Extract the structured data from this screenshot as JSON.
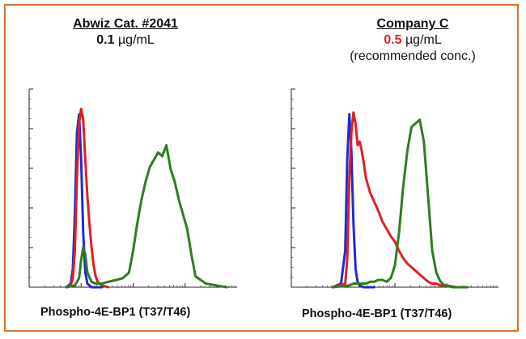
{
  "colors": {
    "border": "#d9742b",
    "red": "#e02020",
    "blue": "#1f2ad6",
    "green": "#2e7d1f",
    "accent_red": "#e02020"
  },
  "panels": [
    {
      "title": "Abwiz Cat. #2041",
      "conc_value": "0.1",
      "conc_unit": " µg/mL",
      "note": "",
      "xlabel": "Phospho-4E-BP1 (T37/T46)"
    },
    {
      "title": "Company C",
      "conc_value": "0.5",
      "conc_unit": " µg/mL",
      "note": "(recommended conc.)",
      "xlabel": "Phospho-4E-BP1 (T37/T46)"
    }
  ],
  "chart_data": [
    {
      "type": "line",
      "title": "Abwiz Cat. #2041",
      "xlabel": "Phospho-4E-BP1 (T37/T46)",
      "ylabel": "",
      "xlim": [
        0,
        100
      ],
      "ylim": [
        0,
        100
      ],
      "series": [
        {
          "color": "#1f2ad6",
          "x": [
            18,
            20,
            21,
            22,
            23,
            24,
            25,
            26,
            27,
            28,
            30,
            35
          ],
          "y": [
            0,
            2,
            10,
            40,
            85,
            95,
            70,
            30,
            8,
            2,
            0,
            0
          ]
        },
        {
          "color": "#e02020",
          "x": [
            18,
            20,
            21,
            22,
            23,
            24,
            25,
            26,
            27,
            28,
            29,
            30,
            31,
            32,
            33,
            35,
            38
          ],
          "y": [
            0,
            1,
            5,
            20,
            60,
            90,
            98,
            92,
            70,
            50,
            35,
            22,
            12,
            6,
            3,
            1,
            0
          ]
        },
        {
          "color": "#2e7d1f",
          "x": [
            18,
            22,
            24,
            25,
            26,
            27,
            28,
            30,
            32,
            35,
            38,
            42,
            45,
            48,
            50,
            52,
            54,
            56,
            58,
            60,
            62,
            64,
            66,
            68,
            70,
            72,
            74,
            76,
            78,
            80,
            85,
            90,
            95
          ],
          "y": [
            0,
            1,
            5,
            15,
            22,
            18,
            8,
            3,
            2,
            2,
            3,
            4,
            5,
            8,
            20,
            35,
            48,
            58,
            66,
            70,
            74,
            72,
            78,
            65,
            58,
            48,
            40,
            32,
            18,
            6,
            2,
            1,
            0
          ]
        }
      ]
    },
    {
      "type": "line",
      "title": "Company C",
      "xlabel": "Phospho-4E-BP1 (T37/T46)",
      "ylabel": "",
      "xlim": [
        0,
        100
      ],
      "ylim": [
        0,
        100
      ],
      "series": [
        {
          "color": "#1f2ad6",
          "x": [
            20,
            24,
            26,
            27,
            28,
            29,
            30,
            31,
            32,
            33,
            35,
            40
          ],
          "y": [
            0,
            2,
            20,
            70,
            95,
            75,
            35,
            10,
            3,
            1,
            0,
            0
          ]
        },
        {
          "color": "#e02020",
          "x": [
            20,
            26,
            27,
            28,
            29,
            30,
            31,
            32,
            33,
            34,
            35,
            36,
            38,
            40,
            42,
            44,
            46,
            48,
            50,
            52,
            54,
            56,
            58,
            60,
            62,
            64,
            66,
            68,
            70,
            72,
            75,
            80,
            85
          ],
          "y": [
            0,
            2,
            15,
            60,
            85,
            96,
            90,
            78,
            80,
            75,
            68,
            60,
            52,
            47,
            42,
            36,
            32,
            28,
            25,
            20,
            16,
            13,
            11,
            9,
            7,
            5,
            3,
            2,
            2,
            1,
            1,
            0,
            0
          ]
        },
        {
          "color": "#2e7d1f",
          "x": [
            20,
            28,
            30,
            32,
            34,
            36,
            38,
            40,
            42,
            44,
            46,
            48,
            50,
            52,
            54,
            56,
            58,
            60,
            62,
            64,
            66,
            68,
            70,
            72,
            74,
            78,
            85
          ],
          "y": [
            0,
            1,
            2,
            2,
            2,
            2,
            3,
            3,
            4,
            4,
            3,
            5,
            12,
            30,
            55,
            75,
            88,
            90,
            92,
            80,
            50,
            20,
            8,
            3,
            1,
            0,
            0
          ]
        }
      ]
    }
  ]
}
